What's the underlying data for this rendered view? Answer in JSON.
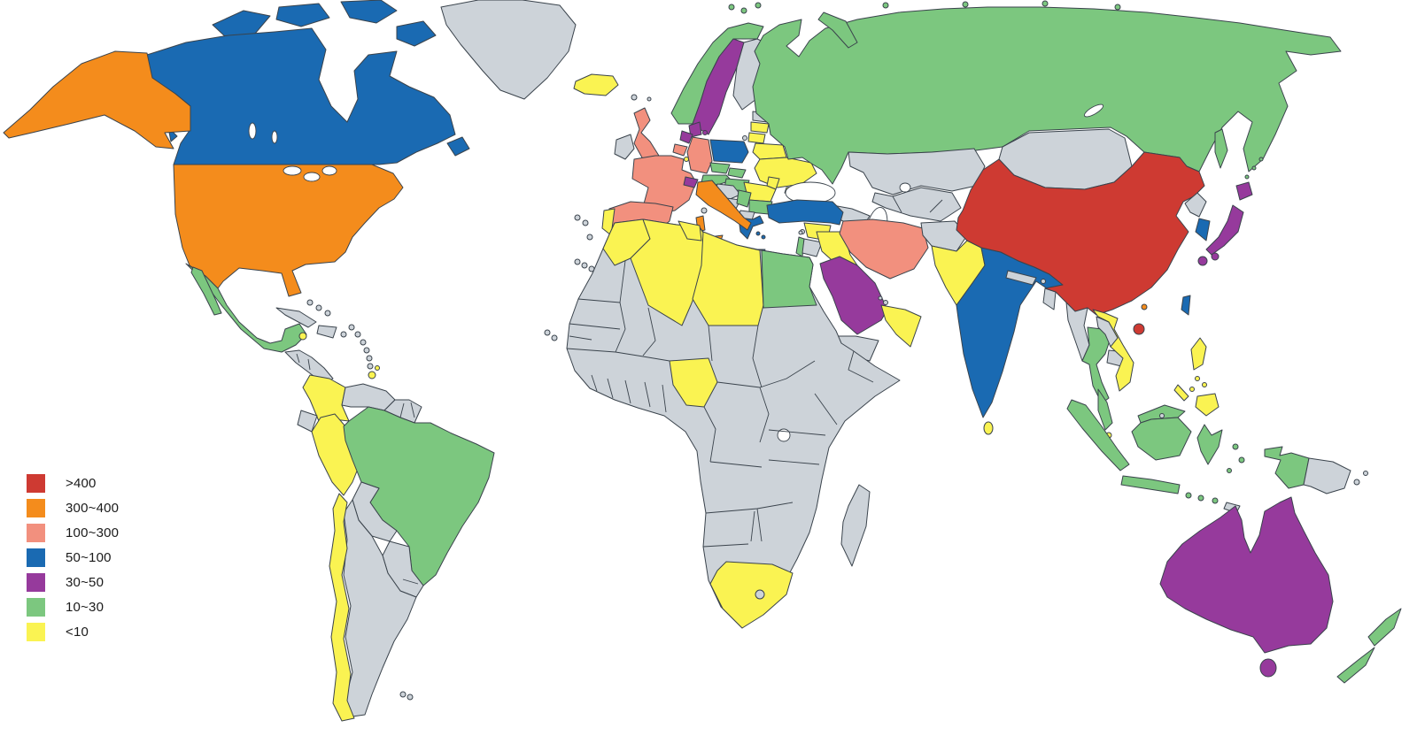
{
  "figure": {
    "type": "world-choropleth-map",
    "ocean_color": "#FFFFFF"
  },
  "legend": {
    "items": [
      {
        "label": ">400",
        "color": "#CE3A32"
      },
      {
        "label": "300~400",
        "color": "#F48C1C"
      },
      {
        "label": "100~300",
        "color": "#F2907E"
      },
      {
        "label": "50~100",
        "color": "#1A6AB2"
      },
      {
        "label": "30~50",
        "color": "#963A9C"
      },
      {
        "label": "10~30",
        "color": "#7CC77F"
      },
      {
        "label": "<10",
        "color": "#FAF352"
      }
    ]
  },
  "map": {
    "no_data_color": "#CDD3D9",
    "border_color": "#3A434C",
    "countries": {
      "china": ">400",
      "usa": "300~400",
      "italy": "300~400",
      "hong-kong": "300~400",
      "united-kingdom": "100~300",
      "france": "100~300",
      "spain": "100~300",
      "germany": "100~300",
      "belgium": "100~300",
      "iran": "100~300",
      "canada": "50~100",
      "poland": "50~100",
      "greece": "50~100",
      "turkey": "50~100",
      "india": "50~100",
      "south-korea": "50~100",
      "taiwan": "50~100",
      "sweden": "30~50",
      "denmark": "30~50",
      "netherlands": "30~50",
      "switzerland": "30~50",
      "saudi-arabia": "30~50",
      "japan": "30~50",
      "australia": "30~50",
      "mexico": "10~30",
      "brazil": "10~30",
      "norway": "10~30",
      "russia": "10~30",
      "czechia": "10~30",
      "austria": "10~30",
      "slovakia": "10~30",
      "hungary": "10~30",
      "serbia": "10~30",
      "bulgaria": "10~30",
      "egypt": "10~30",
      "israel": "10~30",
      "thailand": "10~30",
      "malaysia": "10~30",
      "indonesia": "10~30",
      "new-zealand": "10~30",
      "iceland": "<10",
      "portugal": "<10",
      "latvia": "<10",
      "lithuania": "<10",
      "belarus": "<10",
      "ukraine": "<10",
      "moldova": "<10",
      "romania": "<10",
      "luxembourg": "<10",
      "morocco": "<10",
      "algeria": "<10",
      "tunisia": "<10",
      "libya": "<10",
      "nigeria": "<10",
      "south-africa": "<10",
      "syria": "<10",
      "iraq": "<10",
      "kuwait": "<10",
      "oman-uae": "<10",
      "pakistan": "<10",
      "sri-lanka": "<10",
      "vietnam": "<10",
      "philippines": "<10",
      "singapore": "<10",
      "colombia": "<10",
      "peru": "<10",
      "chile": "<10",
      "jamaica": "<10",
      "trinidad-tobago": "<10",
      "greenland": "no_data",
      "ireland": "no_data",
      "finland": "no_data",
      "estonia": "no_data",
      "kaliningrad": "no_data",
      "kazakhstan": "no_data",
      "central-asia": "no_data",
      "caucasus": "no_data",
      "afghanistan": "no_data",
      "mongolia": "no_data",
      "north-korea": "no_data",
      "myanmar": "no_data",
      "laos": "no_data",
      "cambodia": "no_data",
      "nepal": "no_data",
      "bhutan": "no_data",
      "bangladesh": "no_data",
      "yemen": "no_data",
      "jordan": "no_data",
      "lebanon": "no_data",
      "qatar": "no_data",
      "bahrain": "no_data",
      "cyprus": "no_data",
      "madagascar": "no_data",
      "lesotho": "no_data",
      "cuba": "no_data",
      "hispaniola": "no_data",
      "bahamas": "no_data",
      "puerto-rico": "no_data",
      "lesser-antilles": "no_data",
      "central-america": "no_data",
      "venezuela": "no_data",
      "guyanas": "no_data",
      "ecuador": "no_data",
      "bolivia": "no_data",
      "paraguay-uruguay": "no_data",
      "argentina": "no_data",
      "falklands": "no_data",
      "croatia": "no_data",
      "bosnia": "no_data",
      "albania-macedonia": "no_data",
      "malta": "no_data",
      "corsica": "no_data",
      "balearic": "no_data",
      "faroe": "no_data",
      "atlantic-islands": "no_data",
      "cape-verde": "no_data",
      "timor": "no_data",
      "brunei": "no_data",
      "papua-new-guinea": "no_data",
      "new-britain": "no_data",
      "africa-other": "no_data"
    }
  }
}
